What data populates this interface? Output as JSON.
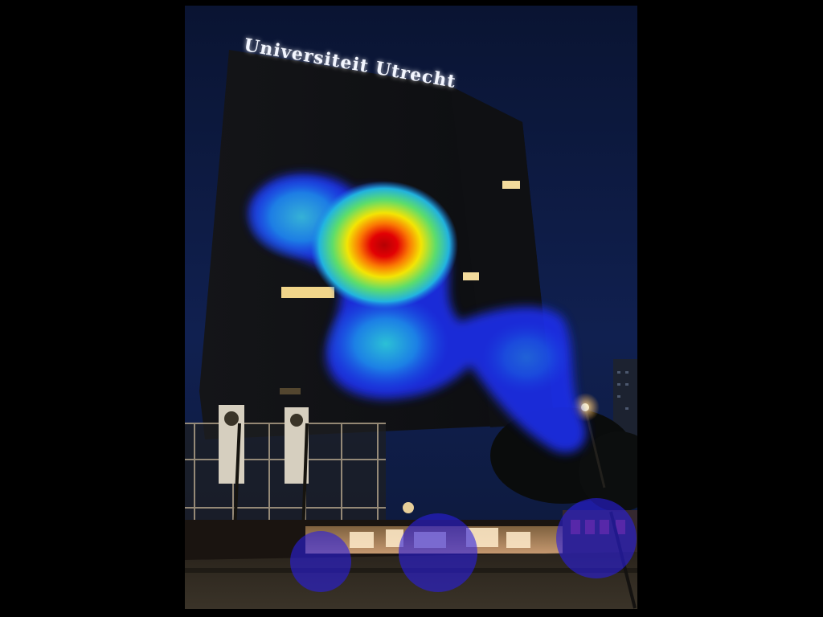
{
  "photo": {
    "sign_text": "Universiteit Utrecht"
  },
  "overlay": {
    "type": "saliency-heatmap",
    "colormap": "jet"
  }
}
